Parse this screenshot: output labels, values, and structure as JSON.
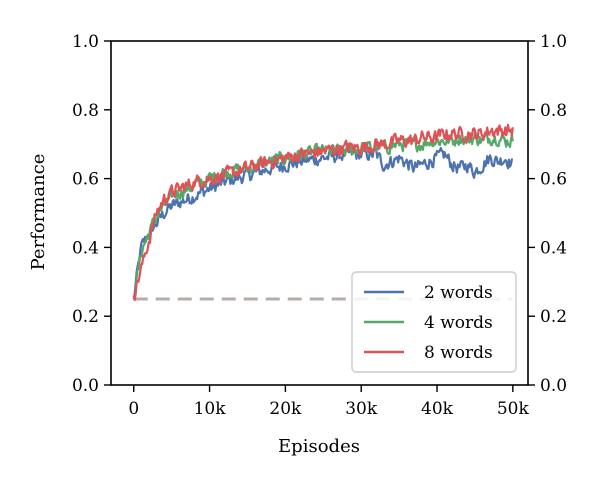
{
  "chart_data": {
    "type": "line",
    "title": "",
    "xlabel": "Episodes",
    "ylabel": "Performance",
    "xlim": [
      -3000,
      52000
    ],
    "ylim": [
      0.0,
      1.0
    ],
    "x_ticks": [
      0,
      10000,
      20000,
      30000,
      40000,
      50000
    ],
    "x_tick_labels": [
      "0",
      "10k",
      "20k",
      "30k",
      "40k",
      "50k"
    ],
    "y_ticks": [
      0.0,
      0.2,
      0.4,
      0.6,
      0.8,
      1.0
    ],
    "y_tick_labels": [
      "0.0",
      "0.2",
      "0.4",
      "0.6",
      "0.8",
      "1.0"
    ],
    "right_axis_mirrors_left": true,
    "grid": false,
    "legend_position": "lower-right",
    "baseline": {
      "y": 0.25,
      "x_range": [
        0,
        50000
      ],
      "style": "dashed",
      "color": "#b7aca8"
    },
    "x": [
      0,
      500,
      1000,
      2000,
      3000,
      4000,
      5000,
      6000,
      8000,
      10000,
      12000,
      15000,
      18000,
      20000,
      22000,
      25000,
      28000,
      30000,
      32000,
      33000,
      35000,
      37000,
      38000,
      39000,
      40000,
      41000,
      42000,
      43000,
      44000,
      45000,
      46000,
      47000,
      48000,
      49000,
      50000
    ],
    "series": [
      {
        "name": "2 words",
        "color": "#4c72b0",
        "values": [
          0.25,
          0.33,
          0.4,
          0.44,
          0.47,
          0.5,
          0.52,
          0.53,
          0.55,
          0.57,
          0.59,
          0.61,
          0.63,
          0.64,
          0.65,
          0.66,
          0.67,
          0.67,
          0.67,
          0.64,
          0.66,
          0.63,
          0.64,
          0.65,
          0.66,
          0.67,
          0.64,
          0.63,
          0.64,
          0.62,
          0.64,
          0.66,
          0.65,
          0.66,
          0.64
        ]
      },
      {
        "name": "4 words",
        "color": "#55a868",
        "values": [
          0.25,
          0.32,
          0.39,
          0.44,
          0.49,
          0.52,
          0.55,
          0.56,
          0.58,
          0.6,
          0.62,
          0.63,
          0.65,
          0.66,
          0.67,
          0.68,
          0.68,
          0.69,
          0.69,
          0.69,
          0.7,
          0.7,
          0.7,
          0.71,
          0.71,
          0.71,
          0.71,
          0.72,
          0.71,
          0.72,
          0.71,
          0.72,
          0.72,
          0.71,
          0.71
        ]
      },
      {
        "name": "8 words",
        "color": "#e05255",
        "values": [
          0.26,
          0.3,
          0.34,
          0.42,
          0.5,
          0.54,
          0.56,
          0.57,
          0.59,
          0.6,
          0.61,
          0.63,
          0.65,
          0.66,
          0.67,
          0.68,
          0.69,
          0.69,
          0.7,
          0.7,
          0.71,
          0.71,
          0.72,
          0.72,
          0.72,
          0.73,
          0.73,
          0.73,
          0.73,
          0.73,
          0.73,
          0.74,
          0.74,
          0.74,
          0.74
        ]
      }
    ]
  }
}
